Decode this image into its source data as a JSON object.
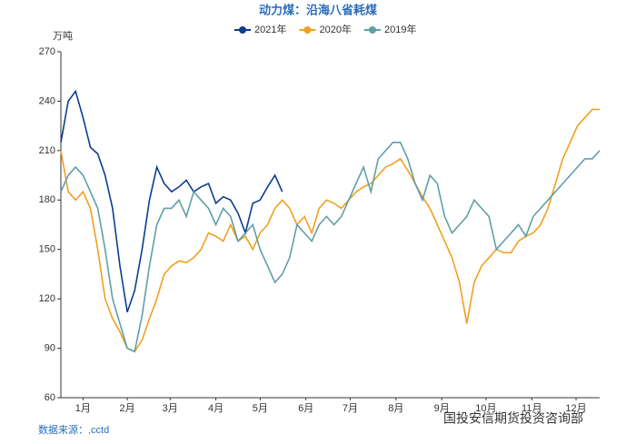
{
  "chart_data": {
    "type": "line",
    "title": "动力煤：沿海八省耗煤",
    "y_unit": "万吨",
    "source": "数据来源：,cctd",
    "watermark": "国投安信期货投资咨询部",
    "xlim": [
      0,
      365
    ],
    "xticks": [
      {
        "value": 15,
        "label": "1月"
      },
      {
        "value": 45,
        "label": "2月"
      },
      {
        "value": 74,
        "label": "3月"
      },
      {
        "value": 105,
        "label": "4月"
      },
      {
        "value": 135,
        "label": "5月"
      },
      {
        "value": 166,
        "label": "6月"
      },
      {
        "value": 196,
        "label": "7月"
      },
      {
        "value": 227,
        "label": "8月"
      },
      {
        "value": 258,
        "label": "9月"
      },
      {
        "value": 288,
        "label": "10月"
      },
      {
        "value": 319,
        "label": "11月"
      },
      {
        "value": 349,
        "label": "12月"
      }
    ],
    "ylim": [
      60,
      270
    ],
    "yticks": [
      60,
      90,
      120,
      150,
      180,
      210,
      240,
      270
    ],
    "grid": false,
    "legend": "top",
    "x": [
      0,
      5,
      10,
      15,
      20,
      25,
      30,
      35,
      40,
      45,
      50,
      55,
      60,
      65,
      70,
      75,
      80,
      85,
      90,
      95,
      100,
      105,
      110,
      115,
      120,
      125,
      130,
      135,
      140,
      145,
      150,
      155,
      160,
      165,
      170,
      175,
      180,
      185,
      190,
      195,
      200,
      205,
      210,
      215,
      220,
      225,
      230,
      235,
      240,
      245,
      250,
      255,
      260,
      265,
      270,
      275,
      280,
      285,
      290,
      295,
      300,
      305,
      310,
      315,
      320,
      325,
      330,
      335,
      340,
      345,
      350,
      355,
      360,
      365
    ],
    "series": [
      {
        "name": "2021年",
        "color": "#0b3d91",
        "values": [
          215,
          240,
          246,
          230,
          212,
          208,
          195,
          175,
          140,
          112,
          125,
          150,
          180,
          200,
          190,
          185,
          188,
          192,
          185,
          188,
          190,
          178,
          182,
          180,
          172,
          160,
          178,
          180,
          188,
          195,
          185,
          null,
          null,
          null,
          null,
          null,
          null,
          null,
          null,
          null,
          null,
          null,
          null,
          null,
          null,
          null,
          null,
          null,
          null,
          null,
          null,
          null,
          null,
          null,
          null,
          null,
          null,
          null,
          null,
          null,
          null,
          null,
          null,
          null,
          null,
          null,
          null,
          null,
          null,
          null,
          null,
          null,
          null,
          null
        ]
      },
      {
        "name": "2020年",
        "color": "#f0a01e",
        "values": [
          210,
          185,
          180,
          185,
          175,
          150,
          120,
          108,
          100,
          90,
          88,
          95,
          108,
          120,
          135,
          140,
          143,
          142,
          145,
          150,
          160,
          158,
          155,
          165,
          155,
          158,
          150,
          160,
          165,
          175,
          180,
          175,
          165,
          170,
          160,
          175,
          180,
          178,
          175,
          180,
          185,
          188,
          190,
          195,
          200,
          202,
          205,
          198,
          190,
          182,
          175,
          165,
          155,
          145,
          130,
          105,
          130,
          140,
          145,
          150,
          148,
          148,
          155,
          158,
          160,
          165,
          175,
          190,
          205,
          215,
          225,
          230,
          235,
          235
        ]
      },
      {
        "name": "2019年",
        "color": "#5f9ea8",
        "values": [
          185,
          195,
          200,
          195,
          185,
          175,
          150,
          120,
          105,
          90,
          88,
          110,
          140,
          165,
          175,
          175,
          180,
          170,
          185,
          180,
          175,
          165,
          175,
          170,
          155,
          160,
          165,
          150,
          140,
          130,
          135,
          145,
          165,
          160,
          155,
          165,
          170,
          165,
          170,
          180,
          190,
          200,
          185,
          205,
          210,
          215,
          215,
          205,
          190,
          180,
          195,
          190,
          170,
          160,
          165,
          170,
          180,
          175,
          170,
          150,
          155,
          160,
          165,
          158,
          170,
          175,
          180,
          185,
          190,
          195,
          200,
          205,
          205,
          210
        ]
      }
    ]
  }
}
